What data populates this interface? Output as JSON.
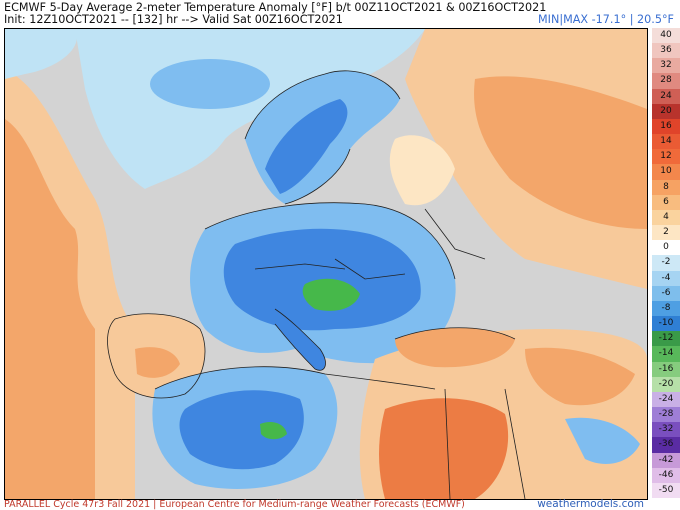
{
  "header": {
    "title": "ECMWF 5-Day Average 2-meter Temperature Anomaly [°F] b/t 00Z11OCT2021 & 00Z16OCT2021",
    "init": "Init: 12Z10OCT2021 -- [132] hr --> Valid Sat 00Z16OCT2021",
    "minmax": "MIN|MAX -17.1° | 20.5°F"
  },
  "map": {
    "region": "Europe, North Africa, Middle East",
    "colors": {
      "ocean": "#d3d3d3",
      "warm_light": "#f7c99a",
      "warm_mid": "#f3a66a",
      "warm_strong": "#ec7c44",
      "cool_light": "#bfe3f5",
      "cool_mid": "#7fbdf0",
      "cool_strong": "#3f86e0",
      "cool_deep": "#2a66c8",
      "green_extreme": "#46b84a",
      "border": "#222222"
    }
  },
  "colorbar": {
    "labels": [
      "40",
      "36",
      "32",
      "28",
      "24",
      "20",
      "16",
      "14",
      "12",
      "10",
      "8",
      "6",
      "4",
      "2",
      "0",
      "-2",
      "-4",
      "-6",
      "-8",
      "-10",
      "-12",
      "-14",
      "-16",
      "-20",
      "-24",
      "-28",
      "-32",
      "-36",
      "-42",
      "-46",
      "-50"
    ],
    "colors": [
      "#f4ddd9",
      "#f0c6bf",
      "#e9aaa0",
      "#e08a80",
      "#cf5f55",
      "#b8332c",
      "#e0442a",
      "#ea5b34",
      "#f06a3a",
      "#f3874c",
      "#f6a263",
      "#f8bc7f",
      "#fad39e",
      "#fde6c4",
      "#ffffff",
      "#cde8f6",
      "#a6d4f2",
      "#7ebeec",
      "#4e9fe3",
      "#2f7fd4",
      "#3a9a48",
      "#58b85a",
      "#86cc7e",
      "#b6e0a8",
      "#c9b0e6",
      "#9e7ed6",
      "#7a4fbf",
      "#5a2ca3",
      "#c79ad8",
      "#e0bde8",
      "#f1dcf2"
    ]
  },
  "footer": {
    "left": "PARALLEL Cycle 47r3 Fall 2021 | European Centre for Medium-range Weather Forecasts (ECMWF)",
    "right": "weathermodels.com"
  }
}
